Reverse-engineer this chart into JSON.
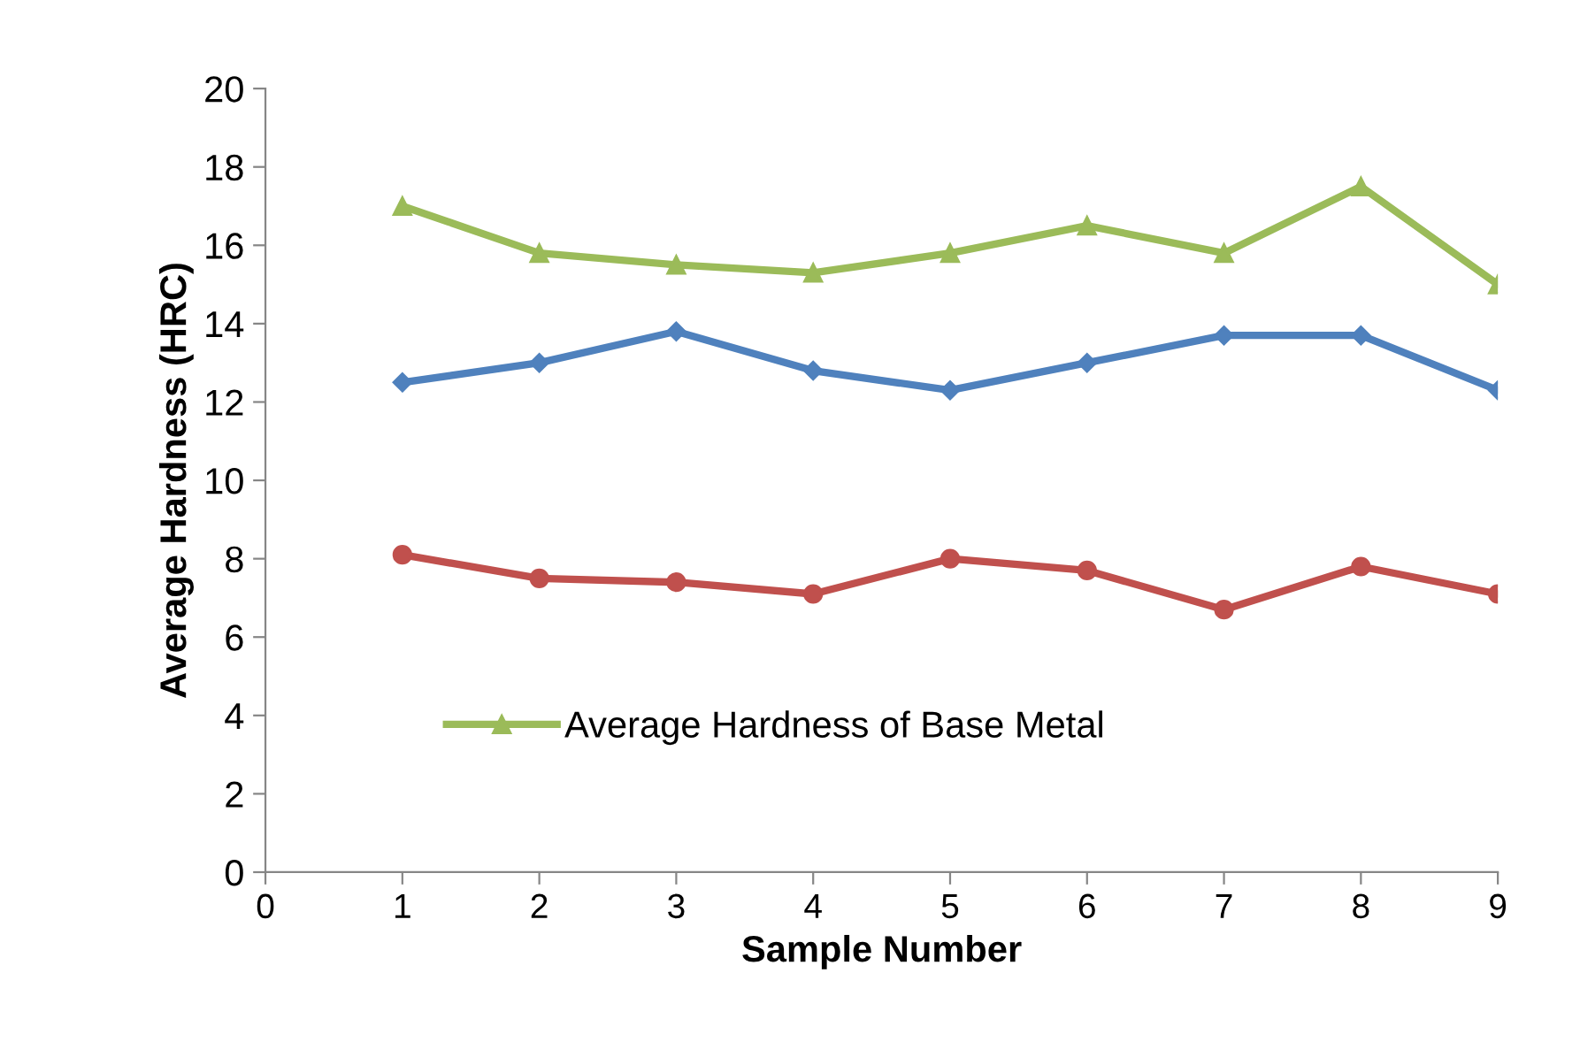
{
  "chart_data": {
    "type": "line",
    "xlabel": "Sample Number",
    "ylabel": "Average Hardness (HRC)",
    "x": [
      1,
      2,
      3,
      4,
      5,
      6,
      7,
      8,
      9
    ],
    "series": [
      {
        "name": "Average Hardness of Base Metal",
        "color": "#9bbb59",
        "marker": "triangle",
        "values": [
          17.0,
          15.8,
          15.5,
          15.3,
          15.8,
          16.5,
          15.8,
          17.5,
          15.0
        ]
      },
      {
        "color": "#4f81bd",
        "marker": "diamond",
        "values": [
          12.5,
          13.0,
          13.8,
          12.8,
          12.3,
          13.0,
          13.7,
          13.7,
          12.3
        ]
      },
      {
        "color": "#c0504d",
        "marker": "circle",
        "values": [
          8.1,
          7.5,
          7.4,
          7.1,
          8.0,
          7.7,
          6.7,
          7.8,
          7.1
        ]
      }
    ],
    "xlim": [
      0,
      9
    ],
    "xticks": [
      0,
      1,
      2,
      3,
      4,
      5,
      6,
      7,
      8,
      9
    ],
    "ylim": [
      0,
      20
    ],
    "yticks": [
      0,
      2,
      4,
      6,
      8,
      10,
      12,
      14,
      16,
      18,
      20
    ],
    "grid": false,
    "legend": "lower left",
    "line_style": "solid"
  }
}
